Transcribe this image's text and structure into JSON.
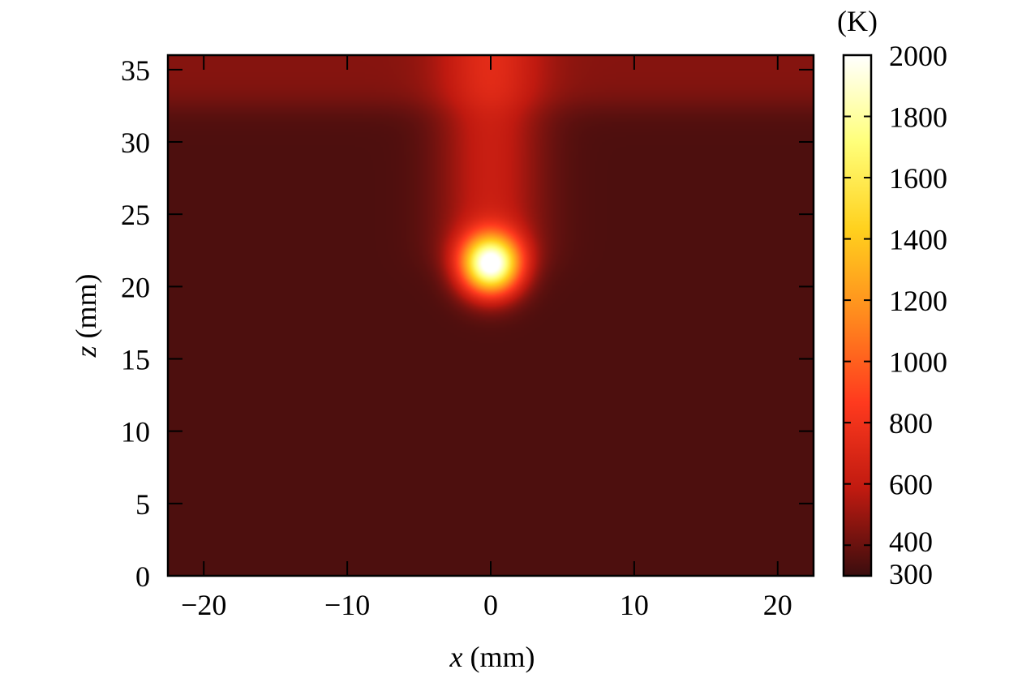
{
  "chart_data": {
    "type": "heatmap",
    "title": "",
    "xlabel": {
      "var": "x",
      "unit": " (mm)"
    },
    "ylabel": {
      "var": "z",
      "unit": " (mm)"
    },
    "xlim": [
      -22.5,
      22.5
    ],
    "ylim": [
      0,
      36
    ],
    "xticks": [
      -20,
      -10,
      0,
      10,
      20
    ],
    "xtick_labels": [
      "−20",
      "−10",
      "0",
      "10",
      "20"
    ],
    "yticks": [
      0,
      5,
      10,
      15,
      20,
      25,
      30,
      35
    ],
    "ytick_labels": [
      "0",
      "5",
      "10",
      "15",
      "20",
      "25",
      "30",
      "35"
    ],
    "colorbar": {
      "unit": "(K)",
      "min": 300,
      "max": 2000,
      "ticks": [
        300,
        400,
        600,
        800,
        1000,
        1200,
        1400,
        1600,
        1800,
        2000
      ],
      "tick_labels": [
        "300",
        "400",
        "600",
        "800",
        "1000",
        "1200",
        "1400",
        "1600",
        "1800",
        "2000"
      ],
      "colormap": "hot",
      "colors": [
        "#3a0d0e",
        "#c01a10",
        "#ff3a1e",
        "#ff8a1e",
        "#ffd11e",
        "#ffff7a",
        "#ffffff"
      ]
    },
    "field": {
      "ambient_temperature": 340,
      "hot_spot": {
        "x": 0.0,
        "z": 21.5,
        "peak_temperature": 2000,
        "radius": 1.5
      },
      "plume": {
        "x": 0.0,
        "z_from": 21.5,
        "z_to": 36,
        "temperature": 620,
        "half_width": 3.5
      },
      "top_layer": {
        "z_from": 32.5,
        "z_to": 36,
        "temperature": 460
      }
    }
  }
}
